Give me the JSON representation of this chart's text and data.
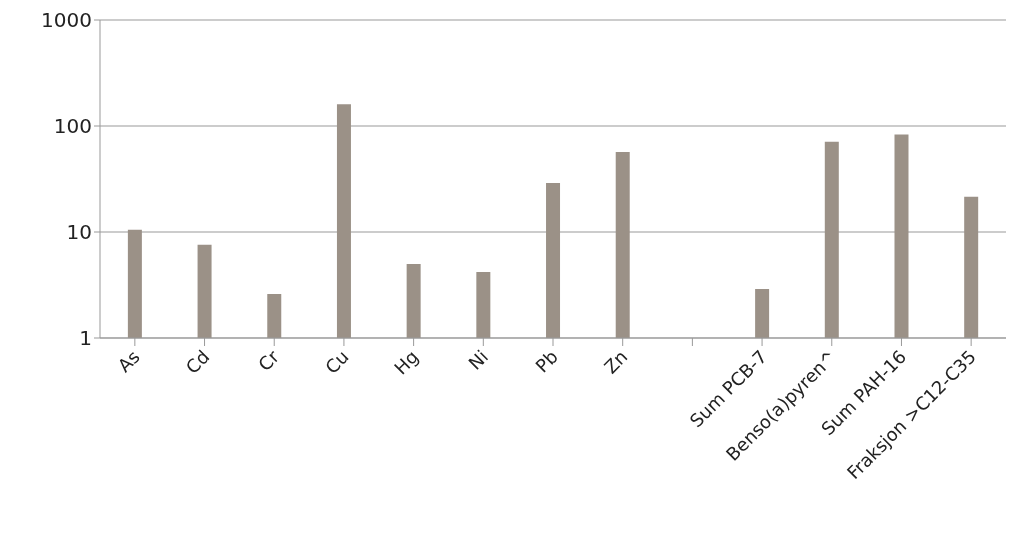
{
  "chart_data": {
    "type": "bar",
    "categories": [
      "As",
      "Cd",
      "Cr",
      "Cu",
      "Hg",
      "Ni",
      "Pb",
      "Zn",
      null,
      "Sum PCB-7",
      "Benso(a)pyren^",
      "Sum PAH-16",
      "Fraksjon >C12-C35"
    ],
    "values": [
      10.5,
      7.6,
      2.6,
      160,
      5,
      4.2,
      29,
      57,
      null,
      2.9,
      71,
      83,
      21.5
    ],
    "color": "#9b9187",
    "log": true,
    "ylim": [
      1,
      1000
    ],
    "yticks": [
      1,
      10,
      100,
      1000
    ],
    "grid": "y"
  }
}
